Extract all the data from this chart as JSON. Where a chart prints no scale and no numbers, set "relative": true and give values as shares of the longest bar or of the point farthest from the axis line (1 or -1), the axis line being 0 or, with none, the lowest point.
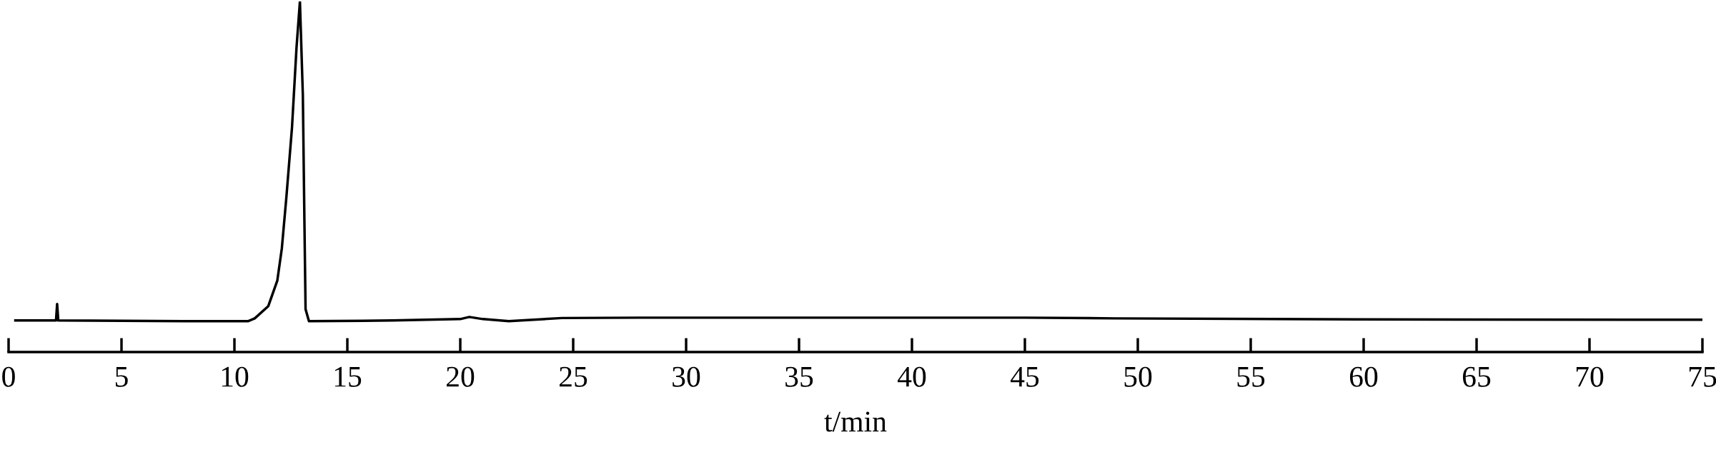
{
  "chart_data": {
    "type": "line",
    "xlabel": "t/min",
    "relative": true,
    "xlim": [
      0,
      75
    ],
    "xticks": [
      0,
      5,
      10,
      15,
      20,
      25,
      30,
      35,
      40,
      45,
      50,
      55,
      60,
      65,
      70,
      75
    ],
    "grid": false,
    "legend": false,
    "marker": "none",
    "line_style": "solid",
    "series": [
      {
        "color": "#000000",
        "x": [
          0.3,
          2.1,
          2.15,
          2.2,
          5,
          8,
          10.6,
          10.9,
          11.5,
          11.9,
          12.1,
          12.3,
          12.55,
          12.75,
          12.9,
          13.03,
          13.1,
          13.15,
          13.3,
          17,
          20.0,
          20.4,
          21.0,
          22.15,
          24.5,
          27.9,
          35,
          45,
          49,
          59.7,
          75
        ],
        "values": [
          0.09,
          0.09,
          0.137,
          0.09,
          0.089,
          0.088,
          0.088,
          0.096,
          0.131,
          0.204,
          0.296,
          0.441,
          0.641,
          0.869,
          1.0,
          0.733,
          0.369,
          0.122,
          0.088,
          0.09,
          0.094,
          0.1,
          0.094,
          0.088,
          0.097,
          0.098,
          0.098,
          0.098,
          0.096,
          0.093,
          0.092
        ]
      }
    ]
  }
}
